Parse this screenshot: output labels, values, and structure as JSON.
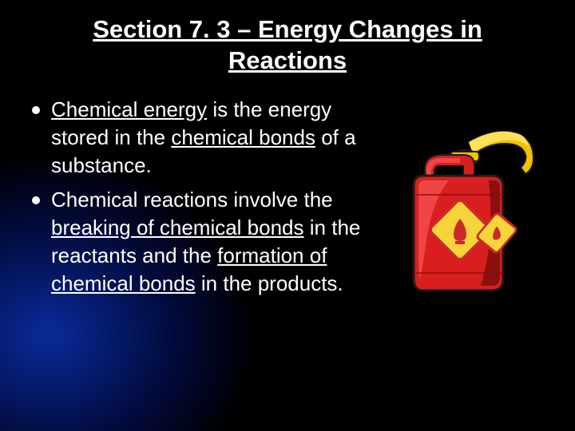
{
  "title": "Section 7. 3 – Energy Changes in Reactions",
  "bullets": [
    {
      "segments": [
        {
          "text": "Chemical energy",
          "underlined": true
        },
        {
          "text": " is the energy stored in the ",
          "underlined": false
        },
        {
          "text": "chemical bonds",
          "underlined": true
        },
        {
          "text": " of a substance.",
          "underlined": false
        }
      ]
    },
    {
      "segments": [
        {
          "text": "Chemical reactions involve the ",
          "underlined": false
        },
        {
          "text": "breaking of chemical bonds",
          "underlined": true
        },
        {
          "text": " in the reactants and the ",
          "underlined": false
        },
        {
          "text": "formation of chemical bonds",
          "underlined": true
        },
        {
          "text": " in the products.",
          "underlined": false
        }
      ]
    }
  ],
  "image": {
    "name": "gas-can-icon",
    "can_body_color": "#d81e1e",
    "can_highlight_color": "#f04545",
    "can_shadow_color": "#8a0f0f",
    "spout_color": "#f2c200",
    "spout_shadow": "#b88e00",
    "label_bg": "#f7d53a",
    "label_border": "#c92a2a",
    "flame_color": "#c92a2a",
    "outline": "#1a1a1a"
  },
  "background": {
    "base": "#000000",
    "glow_center": "#0a2a9a",
    "glow_mid": "#051a6a"
  },
  "text_color": "#ffffff",
  "title_fontsize": 31,
  "body_fontsize": 26
}
